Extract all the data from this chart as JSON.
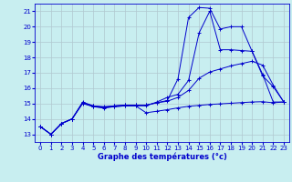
{
  "title": "Graphe des températures (°c)",
  "background_color": "#c8eef0",
  "grid_color": "#b0c8d0",
  "line_color": "#0000cc",
  "xlim": [
    -0.5,
    23.5
  ],
  "ylim": [
    12.5,
    21.5
  ],
  "xticks": [
    0,
    1,
    2,
    3,
    4,
    5,
    6,
    7,
    8,
    9,
    10,
    11,
    12,
    13,
    14,
    15,
    16,
    17,
    18,
    19,
    20,
    21,
    22,
    23
  ],
  "yticks": [
    13,
    14,
    15,
    16,
    17,
    18,
    19,
    20,
    21
  ],
  "line1_x": [
    0,
    1,
    2,
    3,
    4,
    5,
    6,
    7,
    8,
    9,
    10,
    11,
    12,
    13,
    14,
    15,
    16,
    17,
    18,
    19,
    20,
    21,
    22,
    23
  ],
  "line1_y": [
    13.5,
    13.0,
    13.7,
    14.0,
    15.1,
    14.85,
    14.8,
    14.85,
    14.9,
    14.9,
    14.9,
    15.05,
    15.2,
    16.6,
    20.6,
    21.25,
    21.2,
    19.85,
    20.0,
    20.0,
    18.4,
    16.8,
    16.1,
    15.1
  ],
  "line2_x": [
    0,
    1,
    2,
    3,
    4,
    5,
    6,
    7,
    8,
    9,
    10,
    11,
    12,
    13,
    14,
    15,
    16,
    17,
    18,
    19,
    20,
    21,
    22,
    23
  ],
  "line2_y": [
    13.5,
    13.0,
    13.7,
    14.0,
    15.05,
    14.8,
    14.75,
    14.8,
    14.85,
    14.85,
    14.85,
    15.1,
    15.4,
    15.6,
    16.5,
    19.6,
    21.0,
    18.5,
    18.5,
    18.45,
    18.4,
    16.9,
    15.1,
    15.1
  ],
  "line3_x": [
    0,
    1,
    2,
    3,
    4,
    5,
    6,
    7,
    8,
    9,
    10,
    11,
    12,
    13,
    14,
    15,
    16,
    17,
    18,
    19,
    20,
    21,
    22,
    23
  ],
  "line3_y": [
    13.5,
    13.0,
    13.7,
    14.0,
    15.05,
    14.85,
    14.75,
    14.85,
    14.9,
    14.9,
    14.9,
    15.05,
    15.15,
    15.4,
    15.85,
    16.65,
    17.05,
    17.25,
    17.45,
    17.6,
    17.75,
    17.5,
    16.2,
    15.1
  ],
  "line4_x": [
    0,
    1,
    2,
    3,
    4,
    5,
    6,
    7,
    8,
    9,
    10,
    11,
    12,
    13,
    14,
    15,
    16,
    17,
    18,
    19,
    20,
    21,
    22,
    23
  ],
  "line4_y": [
    13.5,
    13.0,
    13.7,
    14.0,
    15.0,
    14.8,
    14.7,
    14.8,
    14.85,
    14.85,
    14.4,
    14.5,
    14.6,
    14.72,
    14.82,
    14.88,
    14.94,
    14.98,
    15.02,
    15.06,
    15.1,
    15.12,
    15.05,
    15.1
  ]
}
